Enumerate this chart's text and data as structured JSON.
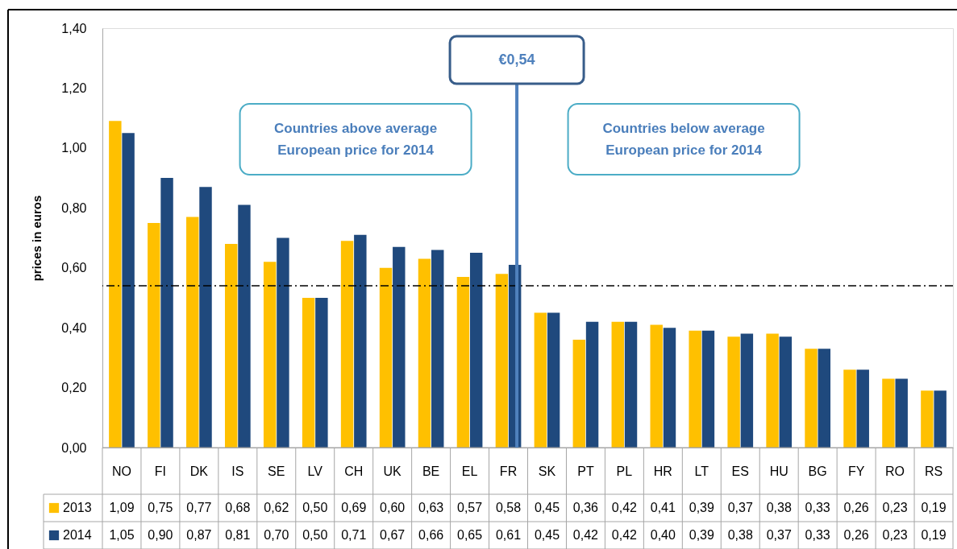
{
  "chart_data": {
    "type": "bar",
    "ylabel": "prices in euros",
    "categories": [
      "NO",
      "FI",
      "DK",
      "IS",
      "SE",
      "LV",
      "CH",
      "UK",
      "BE",
      "EL",
      "FR",
      "SK",
      "PT",
      "PL",
      "HR",
      "LT",
      "ES",
      "HU",
      "BG",
      "FY",
      "RO",
      "RS"
    ],
    "series": [
      {
        "name": "2013",
        "color": "#ffc000",
        "values": [
          1.09,
          0.75,
          0.77,
          0.68,
          0.62,
          0.5,
          0.69,
          0.6,
          0.63,
          0.57,
          0.58,
          0.45,
          0.36,
          0.42,
          0.41,
          0.39,
          0.37,
          0.38,
          0.33,
          0.26,
          0.23,
          0.19
        ],
        "value_labels": [
          "1,09",
          "0,75",
          "0,77",
          "0,68",
          "0,62",
          "0,50",
          "0,69",
          "0,60",
          "0,63",
          "0,57",
          "0,58",
          "0,45",
          "0,36",
          "0,42",
          "0,41",
          "0,39",
          "0,37",
          "0,38",
          "0,33",
          "0,26",
          "0,23",
          "0,19"
        ]
      },
      {
        "name": "2014",
        "color": "#1f497d",
        "values": [
          1.05,
          0.9,
          0.87,
          0.81,
          0.7,
          0.5,
          0.71,
          0.67,
          0.66,
          0.65,
          0.61,
          0.45,
          0.42,
          0.42,
          0.4,
          0.39,
          0.38,
          0.37,
          0.33,
          0.26,
          0.23,
          0.19
        ],
        "value_labels": [
          "1,05",
          "0,90",
          "0,87",
          "0,81",
          "0,70",
          "0,50",
          "0,71",
          "0,67",
          "0,66",
          "0,65",
          "0,61",
          "0,45",
          "0,42",
          "0,42",
          "0,40",
          "0,39",
          "0,38",
          "0,37",
          "0,33",
          "0,26",
          "0,23",
          "0,19"
        ]
      }
    ],
    "ylim": [
      0,
      1.4
    ],
    "yticks": [
      {
        "value": 0,
        "label": "0,00"
      },
      {
        "value": 0.2,
        "label": "0,20"
      },
      {
        "value": 0.4,
        "label": "0,40"
      },
      {
        "value": 0.6,
        "label": "0,60"
      },
      {
        "value": 0.8,
        "label": "0,80"
      },
      {
        "value": 1.0,
        "label": "1,00"
      },
      {
        "value": 1.2,
        "label": "1,20"
      },
      {
        "value": 1.4,
        "label": "1,40"
      }
    ],
    "ref_lines": [
      {
        "axis": "y",
        "value": 0.54,
        "color": "#000000",
        "line_style": "dashed"
      },
      {
        "axis": "x",
        "value": "FR",
        "label": "€0,54",
        "color": "#4f81bd"
      }
    ],
    "annotations": [
      "Countries  above average\nEuropean price for 2014",
      "Countries  below average\nEuropean price for 2014"
    ],
    "legend": "bottom"
  }
}
